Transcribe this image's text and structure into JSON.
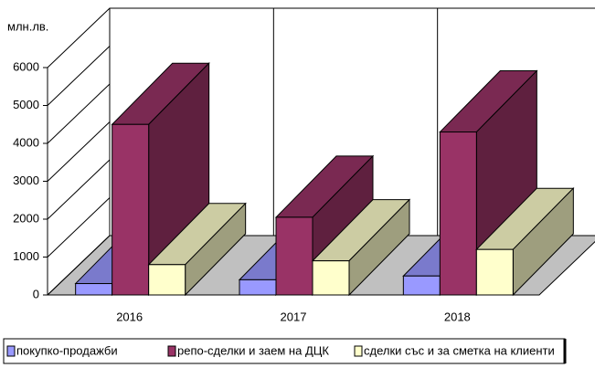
{
  "chart_data": {
    "type": "bar3d",
    "y_label": "млн.лв.",
    "categories": [
      "2016",
      "2017",
      "2018"
    ],
    "series": [
      {
        "name": "покупко-продажби",
        "color": "#9999ff",
        "values": [
          300,
          400,
          500
        ]
      },
      {
        "name": "репо-сделки и заем на ДЦК",
        "color": "#993366",
        "values": [
          4500,
          2050,
          4300
        ]
      },
      {
        "name": "сделки със и за сметка на клиенти",
        "color": "#ffffcc",
        "values": [
          800,
          900,
          1200
        ]
      }
    ],
    "ylim": [
      0,
      6000
    ],
    "yticks": [
      0,
      1000,
      2000,
      3000,
      4000,
      5000,
      6000
    ],
    "grid": true
  }
}
